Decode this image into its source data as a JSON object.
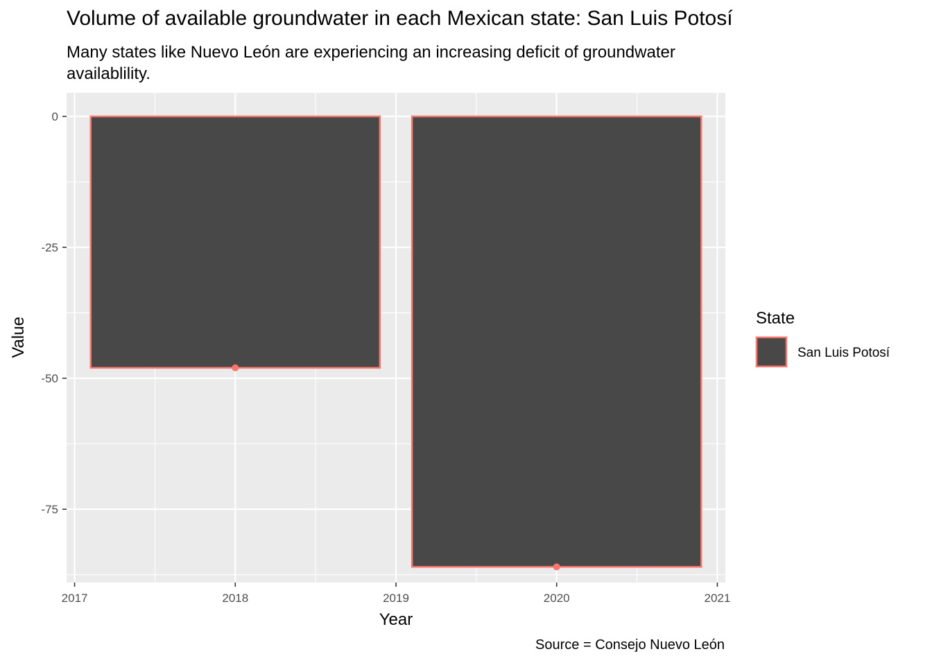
{
  "chart_data": {
    "type": "bar",
    "title": "Volume of available groundwater in each Mexican state: San Luis Potosí",
    "subtitle": "Many states like Nuevo León are experiencing an increasing deficit of groundwater availablility.",
    "caption": "Source = Consejo Nuevo León",
    "xlabel": "Year",
    "ylabel": "Value",
    "x": [
      2018,
      2020
    ],
    "series": [
      {
        "name": "San Luis Potosí",
        "values": [
          -48,
          -86
        ]
      }
    ],
    "xlim": [
      2016.95,
      2021.05
    ],
    "ylim": [
      -89,
      4.5
    ],
    "xticks": [
      2017,
      2018,
      2019,
      2020,
      2021
    ],
    "yticks": [
      0,
      -25,
      -50,
      -75
    ],
    "xtick_labels": [
      "2017",
      "2018",
      "2019",
      "2020",
      "2021"
    ],
    "ytick_labels": [
      "0",
      "-25",
      "-50",
      "-75"
    ],
    "bar_width_years": 1.8,
    "legend": {
      "title": "State",
      "position": "right",
      "labels": [
        "San Luis Potosí"
      ]
    },
    "colors": {
      "bar_fill": "#484848",
      "bar_outline": "#F8766D",
      "point": "#F8766D",
      "panel": "#EBEBEB",
      "grid": "#FFFFFF"
    },
    "grid": true,
    "points_at_bar_ends": true
  }
}
